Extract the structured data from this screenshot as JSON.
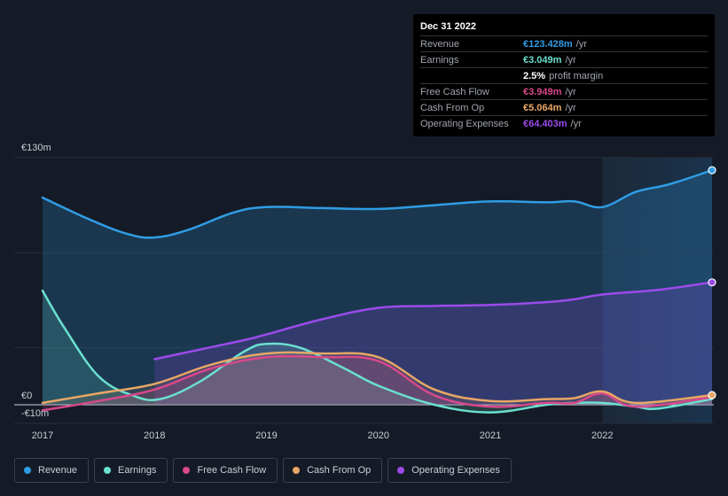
{
  "tooltip": {
    "date": "Dec 31 2022",
    "rows": [
      {
        "label": "Revenue",
        "value": "€123.428m",
        "unit": "/yr",
        "color": "#2f9de4"
      },
      {
        "label": "Earnings",
        "value": "€3.049m",
        "unit": "/yr",
        "color": "#6be0cf"
      },
      {
        "label": "",
        "value": "2.5%",
        "unit": "profit margin",
        "color": "#ffffff"
      },
      {
        "label": "Free Cash Flow",
        "value": "€3.949m",
        "unit": "/yr",
        "color": "#d9488a"
      },
      {
        "label": "Cash From Op",
        "value": "€5.064m",
        "unit": "/yr",
        "color": "#e8a765"
      },
      {
        "label": "Operating Expenses",
        "value": "€64.403m",
        "unit": "/yr",
        "color": "#9b4bea"
      }
    ]
  },
  "legend": [
    {
      "label": "Revenue",
      "color": "#2f9de4"
    },
    {
      "label": "Earnings",
      "color": "#6be0cf"
    },
    {
      "label": "Free Cash Flow",
      "color": "#d9488a"
    },
    {
      "label": "Cash From Op",
      "color": "#e8a765"
    },
    {
      "label": "Operating Expenses",
      "color": "#9b4bea"
    }
  ],
  "chart_data": {
    "type": "area",
    "title": "",
    "xlabel": "",
    "ylabel": "",
    "ylim": [
      -10,
      130
    ],
    "xlim": [
      2017.0,
      2022.98
    ],
    "y_tick_labels": [
      "€130m",
      "€0",
      "-€10m"
    ],
    "x_tick_labels": [
      "2017",
      "2018",
      "2019",
      "2020",
      "2021",
      "2022"
    ],
    "x_ticks": [
      2017,
      2018,
      2019,
      2020,
      2021,
      2022
    ],
    "highlight_start": 2022.0,
    "series": [
      {
        "name": "Revenue",
        "color": "#2f9de4",
        "x": [
          2017.0,
          2017.4,
          2017.75,
          2018.0,
          2018.3,
          2018.7,
          2019.0,
          2019.5,
          2020.0,
          2020.5,
          2021.0,
          2021.5,
          2021.75,
          2022.0,
          2022.3,
          2022.6,
          2022.98
        ],
        "y": [
          109,
          98,
          90,
          88,
          92,
          101,
          104,
          103.5,
          103,
          105,
          107,
          106.5,
          107,
          104,
          112,
          116,
          123.4
        ]
      },
      {
        "name": "Operating Expenses",
        "color": "#9b4bea",
        "x": [
          2018.0,
          2018.4,
          2018.8,
          2019.0,
          2019.5,
          2020.0,
          2020.5,
          2021.0,
          2021.5,
          2021.75,
          2022.0,
          2022.5,
          2022.98
        ],
        "y": [
          24,
          29,
          34,
          37,
          45,
          51,
          52,
          52.5,
          54,
          55.5,
          58,
          60.5,
          64.4
        ]
      },
      {
        "name": "Earnings",
        "color": "#6be0cf",
        "x": [
          2017.0,
          2017.2,
          2017.5,
          2017.8,
          2018.05,
          2018.4,
          2018.8,
          2019.0,
          2019.3,
          2019.7,
          2020.0,
          2020.5,
          2021.0,
          2021.5,
          2021.75,
          2022.0,
          2022.3,
          2022.5,
          2022.98
        ],
        "y": [
          60,
          40,
          15,
          5,
          3,
          12,
          28,
          32,
          30,
          19,
          10,
          0,
          -4,
          0,
          1,
          1,
          -1,
          -2,
          3.05
        ]
      },
      {
        "name": "Free Cash Flow",
        "color": "#d9488a",
        "x": [
          2017.0,
          2017.5,
          2018.0,
          2018.5,
          2019.0,
          2019.5,
          2020.0,
          2020.5,
          2021.0,
          2021.5,
          2021.75,
          2022.0,
          2022.3,
          2022.98
        ],
        "y": [
          -3,
          2,
          8,
          19,
          25,
          25,
          23,
          5,
          -1,
          1,
          1,
          6,
          -1,
          3.95
        ]
      },
      {
        "name": "Cash From Op",
        "color": "#e8a765",
        "x": [
          2017.0,
          2017.5,
          2018.0,
          2018.5,
          2019.0,
          2019.5,
          2020.0,
          2020.5,
          2021.0,
          2021.5,
          2021.75,
          2022.0,
          2022.3,
          2022.98
        ],
        "y": [
          1,
          6,
          11,
          21,
          27,
          27,
          25,
          8,
          2,
          3,
          3.5,
          7,
          1,
          5.06
        ]
      }
    ]
  }
}
